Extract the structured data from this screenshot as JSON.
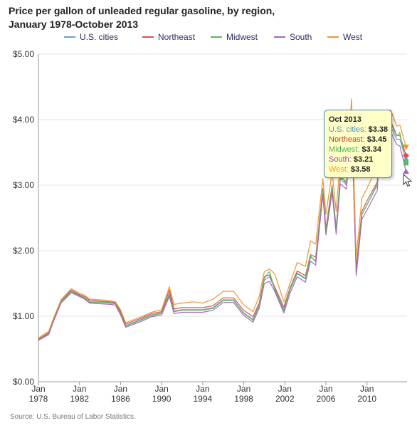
{
  "title": {
    "line1": "Price per gallon of unleaded regular gasoline, by region,",
    "line2": "January 1978-October 2013"
  },
  "source": "Source: U.S. Bureau of Labor Statistics.",
  "tooltip": {
    "month": "Oct 2013",
    "rows": [
      {
        "label": "U.S. cities:",
        "value": "$3.38",
        "color": "#4f8fc0"
      },
      {
        "label": "Northeast:",
        "value": "$3.45",
        "color": "#c0392b"
      },
      {
        "label": "Midwest:",
        "value": "$3.34",
        "color": "#4caf50"
      },
      {
        "label": "South:",
        "value": "$3.21",
        "color": "#8e44ad"
      },
      {
        "label": "West:",
        "value": "$3.58",
        "color": "#f39c12"
      }
    ]
  },
  "colors": {
    "us": "#6ca0d0",
    "northeast": "#d9534f",
    "midwest": "#5cb85c",
    "south": "#a569bd",
    "west": "#f0962e",
    "grid": "#e6e6e6",
    "axis": "#999999"
  },
  "chart_data": {
    "type": "line",
    "ylim": [
      0,
      5
    ],
    "xlim": [
      1978,
      2013.9
    ],
    "yticks": [
      "$0.00",
      "$1.00",
      "$2.00",
      "$3.00",
      "$4.00",
      "$5.00"
    ],
    "xticks": [
      {
        "top": "Jan",
        "bottom": "1978",
        "x": 1978
      },
      {
        "top": "Jan",
        "bottom": "1982",
        "x": 1982
      },
      {
        "top": "Jan",
        "bottom": "1986",
        "x": 1986
      },
      {
        "top": "Jan",
        "bottom": "1990",
        "x": 1990
      },
      {
        "top": "Jan",
        "bottom": "1994",
        "x": 1994
      },
      {
        "top": "Jan",
        "bottom": "1998",
        "x": 1998
      },
      {
        "top": "Jan",
        "bottom": "2002",
        "x": 2002
      },
      {
        "top": "Jan",
        "bottom": "2006",
        "x": 2006
      },
      {
        "top": "Jan",
        "bottom": "2010",
        "x": 2010
      }
    ],
    "x": [
      1978.0,
      1979.0,
      1979.5,
      1980.2,
      1981.2,
      1982.0,
      1982.5,
      1983.0,
      1984.0,
      1985.0,
      1985.5,
      1986.0,
      1986.5,
      1987.5,
      1988.0,
      1989.0,
      1990.0,
      1990.75,
      1991.2,
      1992.0,
      1993.0,
      1994.0,
      1995.0,
      1996.0,
      1997.0,
      1998.0,
      1998.9,
      1999.5,
      2000.0,
      2000.5,
      2001.0,
      2001.9,
      2002.5,
      2003.2,
      2004.0,
      2004.5,
      2005.0,
      2005.7,
      2006.0,
      2006.6,
      2007.0,
      2007.4,
      2008.0,
      2008.5,
      2008.95,
      2009.5,
      2010.0,
      2011.0,
      2011.3,
      2012.0,
      2012.3,
      2012.9,
      2013.2,
      2013.8
    ],
    "series": [
      {
        "name": "U.S. cities",
        "key": "us",
        "values": [
          0.65,
          0.74,
          0.95,
          1.22,
          1.38,
          1.32,
          1.28,
          1.22,
          1.22,
          1.21,
          1.2,
          1.05,
          0.86,
          0.92,
          0.95,
          1.02,
          1.05,
          1.35,
          1.08,
          1.1,
          1.1,
          1.1,
          1.13,
          1.25,
          1.25,
          1.05,
          0.95,
          1.17,
          1.55,
          1.6,
          1.43,
          1.1,
          1.4,
          1.65,
          1.57,
          1.9,
          1.85,
          2.9,
          2.3,
          2.95,
          2.3,
          3.1,
          3.0,
          4.06,
          1.68,
          2.55,
          2.7,
          3.0,
          3.8,
          3.4,
          3.9,
          3.7,
          3.7,
          3.38
        ]
      },
      {
        "name": "Northeast",
        "key": "northeast",
        "values": [
          0.65,
          0.75,
          0.97,
          1.24,
          1.4,
          1.33,
          1.3,
          1.24,
          1.23,
          1.22,
          1.21,
          1.07,
          0.88,
          0.94,
          0.97,
          1.04,
          1.07,
          1.4,
          1.11,
          1.13,
          1.13,
          1.13,
          1.16,
          1.28,
          1.28,
          1.09,
          0.99,
          1.2,
          1.6,
          1.63,
          1.45,
          1.14,
          1.43,
          1.69,
          1.62,
          1.94,
          1.9,
          2.95,
          2.34,
          3.0,
          2.34,
          3.12,
          3.05,
          4.12,
          1.73,
          2.6,
          2.76,
          3.05,
          3.88,
          3.48,
          3.98,
          3.76,
          3.76,
          3.45
        ]
      },
      {
        "name": "Midwest",
        "key": "midwest",
        "values": [
          0.64,
          0.73,
          0.94,
          1.21,
          1.37,
          1.31,
          1.27,
          1.21,
          1.21,
          1.2,
          1.19,
          1.04,
          0.85,
          0.91,
          0.94,
          1.01,
          1.04,
          1.33,
          1.07,
          1.09,
          1.09,
          1.09,
          1.12,
          1.24,
          1.24,
          1.04,
          0.94,
          1.16,
          1.58,
          1.68,
          1.41,
          1.08,
          1.42,
          1.66,
          1.58,
          1.92,
          1.83,
          2.92,
          2.3,
          2.97,
          2.32,
          3.16,
          3.02,
          4.04,
          1.64,
          2.55,
          2.7,
          3.02,
          3.84,
          3.38,
          3.95,
          3.75,
          3.8,
          3.34
        ]
      },
      {
        "name": "South",
        "key": "south",
        "values": [
          0.63,
          0.72,
          0.93,
          1.2,
          1.36,
          1.3,
          1.26,
          1.2,
          1.19,
          1.18,
          1.17,
          1.02,
          0.83,
          0.89,
          0.92,
          0.99,
          1.02,
          1.3,
          1.04,
          1.06,
          1.06,
          1.06,
          1.09,
          1.21,
          1.21,
          1.01,
          0.91,
          1.12,
          1.5,
          1.53,
          1.38,
          1.05,
          1.35,
          1.6,
          1.52,
          1.84,
          1.78,
          2.85,
          2.24,
          2.89,
          2.25,
          3.02,
          2.94,
          3.98,
          1.62,
          2.48,
          2.62,
          2.92,
          3.72,
          3.3,
          3.82,
          3.62,
          3.6,
          3.21
        ]
      },
      {
        "name": "West",
        "key": "west",
        "values": [
          0.67,
          0.77,
          0.98,
          1.25,
          1.42,
          1.35,
          1.32,
          1.26,
          1.25,
          1.24,
          1.22,
          1.1,
          0.9,
          0.96,
          0.99,
          1.06,
          1.1,
          1.45,
          1.18,
          1.2,
          1.22,
          1.2,
          1.26,
          1.38,
          1.38,
          1.17,
          1.07,
          1.3,
          1.68,
          1.72,
          1.65,
          1.22,
          1.5,
          1.82,
          1.76,
          2.15,
          2.1,
          3.1,
          2.55,
          3.2,
          2.6,
          3.4,
          3.25,
          4.32,
          1.9,
          2.8,
          2.95,
          3.3,
          4.1,
          3.6,
          4.15,
          3.9,
          3.92,
          3.58
        ]
      }
    ]
  }
}
